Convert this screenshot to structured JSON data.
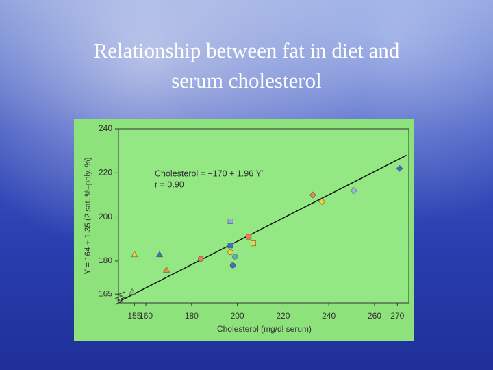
{
  "slide": {
    "title_lines": [
      "Relationship between fat in diet and",
      "serum cholesterol"
    ]
  },
  "chart_data": {
    "type": "scatter",
    "x_label": "Cholesterol (mg/dl serum)",
    "y_label": "Y = 164 + 1.35 (2 sat. %–poly. %)",
    "annotations": [
      "Cholesterol = −170 + 1.96 Y′",
      "r = 0.90"
    ],
    "xlim": [
      148,
      275
    ],
    "ylim": [
      161,
      240
    ],
    "xticks": [
      155,
      160,
      180,
      200,
      220,
      240,
      260,
      270
    ],
    "yticks": [
      165,
      180,
      200,
      220,
      240
    ],
    "grid": false,
    "points": [
      {
        "x": 155,
        "y": 183,
        "marker": "triangle",
        "color": "#f2d23a"
      },
      {
        "x": 166,
        "y": 183,
        "marker": "triangle",
        "color": "#4a6fc4"
      },
      {
        "x": 169,
        "y": 176,
        "marker": "triangle",
        "color": "#f08a3c"
      },
      {
        "x": 154,
        "y": 166,
        "marker": "triangle",
        "color": "#7fd870"
      },
      {
        "x": 184,
        "y": 181,
        "marker": "circle",
        "color": "#f07a4a"
      },
      {
        "x": 197,
        "y": 184,
        "marker": "circle",
        "color": "#f2d23a"
      },
      {
        "x": 198,
        "y": 178,
        "marker": "circle",
        "color": "#3f6fc8"
      },
      {
        "x": 199,
        "y": 182,
        "marker": "circle",
        "color": "#5ab0b8"
      },
      {
        "x": 197,
        "y": 198,
        "marker": "square",
        "color": "#8fb0e0"
      },
      {
        "x": 197,
        "y": 187,
        "marker": "square",
        "color": "#3f6fc8"
      },
      {
        "x": 205,
        "y": 191,
        "marker": "square",
        "color": "#f07a4a"
      },
      {
        "x": 207,
        "y": 188,
        "marker": "square",
        "color": "#f2d23a"
      },
      {
        "x": 233,
        "y": 210,
        "marker": "diamond",
        "color": "#f08a3c"
      },
      {
        "x": 237,
        "y": 207,
        "marker": "diamond",
        "color": "#f2d23a"
      },
      {
        "x": 251,
        "y": 212,
        "marker": "diamond",
        "color": "#9fb8e8"
      },
      {
        "x": 271,
        "y": 222,
        "marker": "diamond",
        "color": "#3f6fc8"
      }
    ],
    "fit_line": {
      "x": [
        149,
        274
      ],
      "y": [
        162,
        228
      ],
      "color": "#111111"
    }
  }
}
